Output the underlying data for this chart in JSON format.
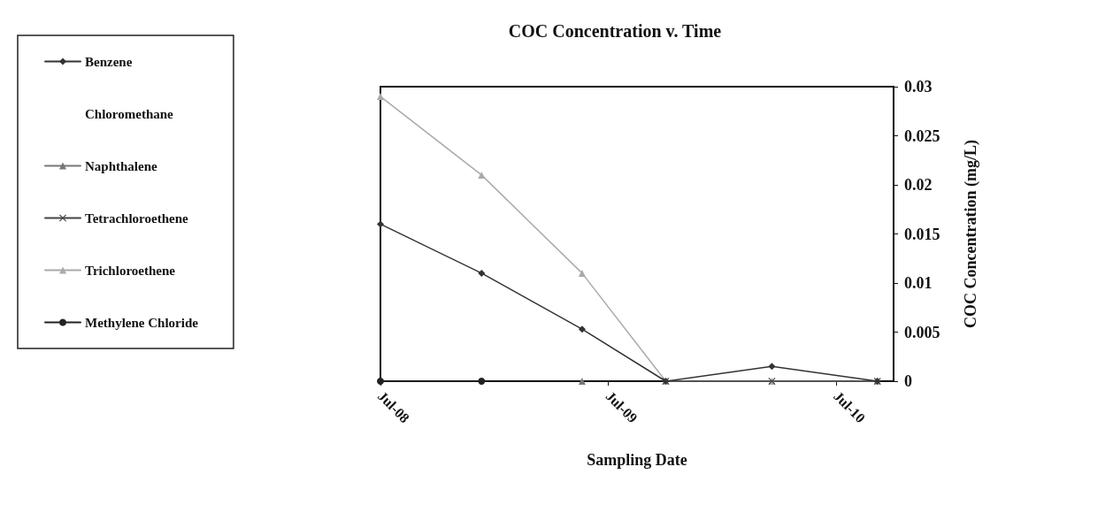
{
  "chart_data": {
    "type": "line",
    "title": "COC Concentration v. Time",
    "xlabel": "Sampling Date",
    "ylabel": "COC Concentration (mg/L)",
    "x": [
      "2008-07-01",
      "2008-12-10",
      "2009-05-20",
      "2009-10-01",
      "2010-03-20",
      "2010-09-05"
    ],
    "xlim": [
      "2008-07-01",
      "2010-10-01"
    ],
    "xticks": [
      {
        "value": "2008-07-01",
        "label": "Jul-08"
      },
      {
        "value": "2009-07-01",
        "label": "Jul-09"
      },
      {
        "value": "2010-07-01",
        "label": "Jul-10"
      }
    ],
    "ylim": [
      0,
      0.03
    ],
    "yticks": [
      0,
      0.005,
      0.01,
      0.015,
      0.02,
      0.025,
      0.03
    ],
    "grid": false,
    "legend": "left",
    "series": [
      {
        "name": "Benzene",
        "color": "#333333",
        "marker": "diamond",
        "values": [
          0.016,
          0.011,
          0.0053,
          0,
          0.0015,
          0
        ]
      },
      {
        "name": "Chloromethane",
        "marker": "none",
        "values": [
          null,
          null,
          null,
          null,
          null,
          null
        ]
      },
      {
        "name": "Naphthalene",
        "color": "#777777",
        "marker": "triangle",
        "values": [
          null,
          null,
          0,
          null,
          null,
          null
        ]
      },
      {
        "name": "Tetrachloroethene",
        "color": "#444444",
        "marker": "cross",
        "values": [
          null,
          null,
          null,
          0,
          0,
          0
        ]
      },
      {
        "name": "Trichloroethene",
        "color": "#aaaaaa",
        "marker": "triangle",
        "values": [
          0.029,
          0.021,
          0.011,
          0,
          0,
          0
        ]
      },
      {
        "name": "Methylene Chloride",
        "color": "#222222",
        "marker": "circle",
        "values": [
          0,
          0,
          null,
          null,
          null,
          null
        ]
      }
    ]
  }
}
